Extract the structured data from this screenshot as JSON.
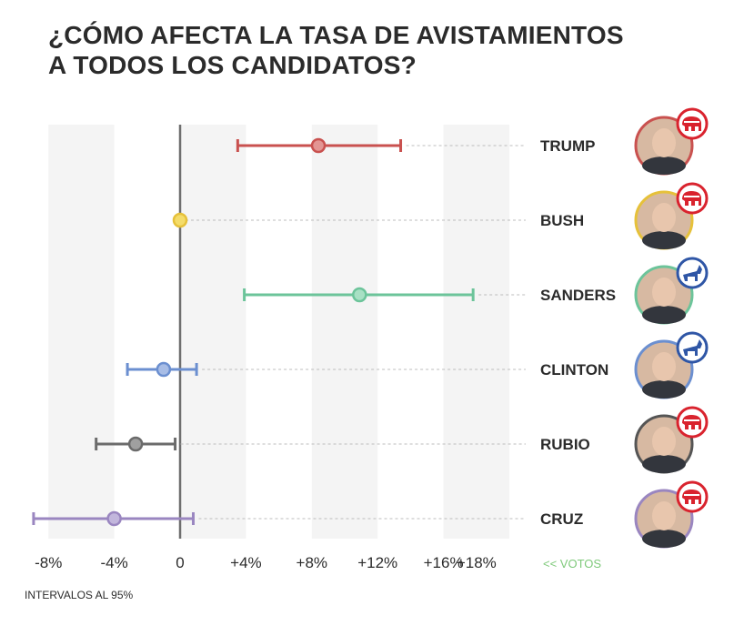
{
  "title_lines": [
    "¿CÓMO AFECTA LA TASA DE AVISTAMIENTOS",
    "A TODOS LOS CANDIDATOS?"
  ],
  "footnote": "INTERVALOS AL 95%",
  "chart_data": {
    "type": "errorbar",
    "title": "¿CÓMO AFECTA LA TASA DE AVISTAMIENTOS A TODOS LOS CANDIDATOS?",
    "xlabel": "<< VOTOS",
    "xlim": [
      -9,
      20
    ],
    "xticks": [
      -8,
      -4,
      0,
      4,
      8,
      12,
      16,
      18
    ],
    "xtick_labels": [
      "-8%",
      "-4%",
      "0",
      "+4%",
      "+8%",
      "+12%",
      "+16%",
      "+18%"
    ],
    "shaded_bands": [
      [
        -8,
        -4
      ],
      [
        0,
        4
      ],
      [
        8,
        12
      ],
      [
        16,
        20
      ]
    ],
    "series": [
      {
        "name": "TRUMP",
        "party": "republican",
        "estimate": 8.4,
        "lower": 3.5,
        "upper": 13.4,
        "color": "#c9514f",
        "fill": "#e39593"
      },
      {
        "name": "BUSH",
        "party": "republican",
        "estimate": 0.0,
        "lower": 0.0,
        "upper": 0.0,
        "color": "#e6c13a",
        "fill": "#f4dc6a"
      },
      {
        "name": "SANDERS",
        "party": "democrat",
        "estimate": 10.9,
        "lower": 3.9,
        "upper": 17.8,
        "color": "#6cc49a",
        "fill": "#a8e0c4"
      },
      {
        "name": "CLINTON",
        "party": "democrat",
        "estimate": -1.0,
        "lower": -3.2,
        "upper": 1.0,
        "color": "#6b8fd0",
        "fill": "#a8bde6"
      },
      {
        "name": "RUBIO",
        "party": "republican",
        "estimate": -2.7,
        "lower": -5.1,
        "upper": -0.3,
        "color": "#6b6b6b",
        "fill": "#a0a0a0"
      },
      {
        "name": "CRUZ",
        "party": "republican",
        "estimate": -4.0,
        "lower": -8.9,
        "upper": 0.8,
        "color": "#9a86c0",
        "fill": "#c2b6dc"
      }
    ],
    "ring_colors": {
      "TRUMP": "#c9514f",
      "BUSH": "#e6c13a",
      "SANDERS": "#6cc49a",
      "CLINTON": "#6b8fd0",
      "RUBIO": "#555555",
      "CRUZ": "#9a86c0"
    },
    "party_colors": {
      "republican": "#d9232e",
      "democrat": "#2f56a6"
    },
    "grid": false
  }
}
